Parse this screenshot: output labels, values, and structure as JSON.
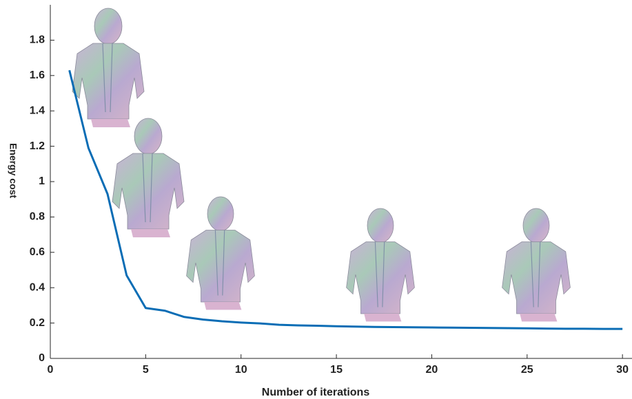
{
  "chart_data": {
    "type": "line",
    "x_label": "Number of iterations",
    "y_label": "Energy cost",
    "x": [
      1,
      2,
      3,
      4,
      5,
      6,
      7,
      8,
      9,
      10,
      11,
      12,
      13,
      14,
      15,
      16,
      17,
      18,
      19,
      20,
      21,
      22,
      23,
      24,
      25,
      26,
      27,
      28,
      29,
      30
    ],
    "series": [
      {
        "name": "Energy cost",
        "color": "#0a6db5",
        "values": [
          1.63,
          1.19,
          0.93,
          0.47,
          0.285,
          0.27,
          0.235,
          0.22,
          0.21,
          0.203,
          0.198,
          0.19,
          0.187,
          0.185,
          0.182,
          0.18,
          0.178,
          0.177,
          0.176,
          0.175,
          0.174,
          0.173,
          0.172,
          0.171,
          0.17,
          0.169,
          0.168,
          0.168,
          0.167,
          0.167
        ]
      }
    ],
    "xlim": [
      0,
      30.5
    ],
    "ylim": [
      0,
      2
    ],
    "xticks": [
      0,
      5,
      10,
      15,
      20,
      25,
      30
    ],
    "yticks": [
      0,
      0.2,
      0.4,
      0.6,
      0.8,
      1,
      1.2,
      1.4,
      1.6,
      1.8
    ],
    "grid": false
  }
}
